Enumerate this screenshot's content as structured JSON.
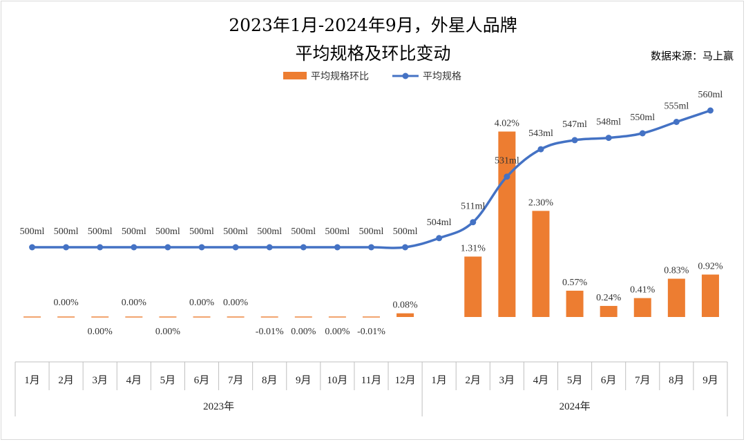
{
  "chart_data": {
    "type": "bar+line",
    "title_line1": "2023年1月-2024年9月，外星人品牌",
    "title_line2": "平均规格及环比变动",
    "source": "数据来源：马上赢",
    "categories": [
      "1月",
      "2月",
      "3月",
      "4月",
      "5月",
      "6月",
      "7月",
      "8月",
      "9月",
      "10月",
      "11月",
      "12月",
      "1月",
      "2月",
      "3月",
      "4月",
      "5月",
      "6月",
      "7月",
      "8月",
      "9月"
    ],
    "groups": [
      {
        "label": "2023年",
        "start": 0,
        "end": 11
      },
      {
        "label": "2024年",
        "start": 12,
        "end": 20
      }
    ],
    "series": [
      {
        "name": "平均规格环比",
        "type": "bar",
        "color": "#ED7D31",
        "values": [
          0.0,
          0.0,
          0.0,
          0.0,
          0.0,
          0.0,
          0.0,
          -0.01,
          0.0,
          0.0,
          -0.01,
          0.08,
          null,
          1.31,
          4.02,
          2.3,
          0.57,
          0.24,
          0.41,
          0.83,
          0.92
        ],
        "labels": [
          "",
          "0.00%",
          "0.00%",
          "0.00%",
          "0.00%",
          "0.00%",
          "0.00%",
          "-0.01%",
          "0.00%",
          "0.00%",
          "-0.01%",
          "0.08%",
          "",
          "1.31%",
          "4.02%",
          "2.30%",
          "0.57%",
          "0.24%",
          "0.41%",
          "0.83%",
          "0.92%"
        ]
      },
      {
        "name": "平均规格",
        "type": "line",
        "color": "#4472C4",
        "values": [
          500,
          500,
          500,
          500,
          500,
          500,
          500,
          500,
          500,
          500,
          500,
          500,
          504,
          511,
          531,
          543,
          547,
          548,
          550,
          555,
          560
        ],
        "labels": [
          "500ml",
          "500ml",
          "500ml",
          "500ml",
          "500ml",
          "500ml",
          "500ml",
          "500ml",
          "500ml",
          "500ml",
          "500ml",
          "500ml",
          "504ml",
          "511ml",
          "531ml",
          "543ml",
          "547ml",
          "548ml",
          "550ml",
          "555ml",
          "560ml"
        ]
      }
    ],
    "legend_position": "top",
    "grid": false
  }
}
